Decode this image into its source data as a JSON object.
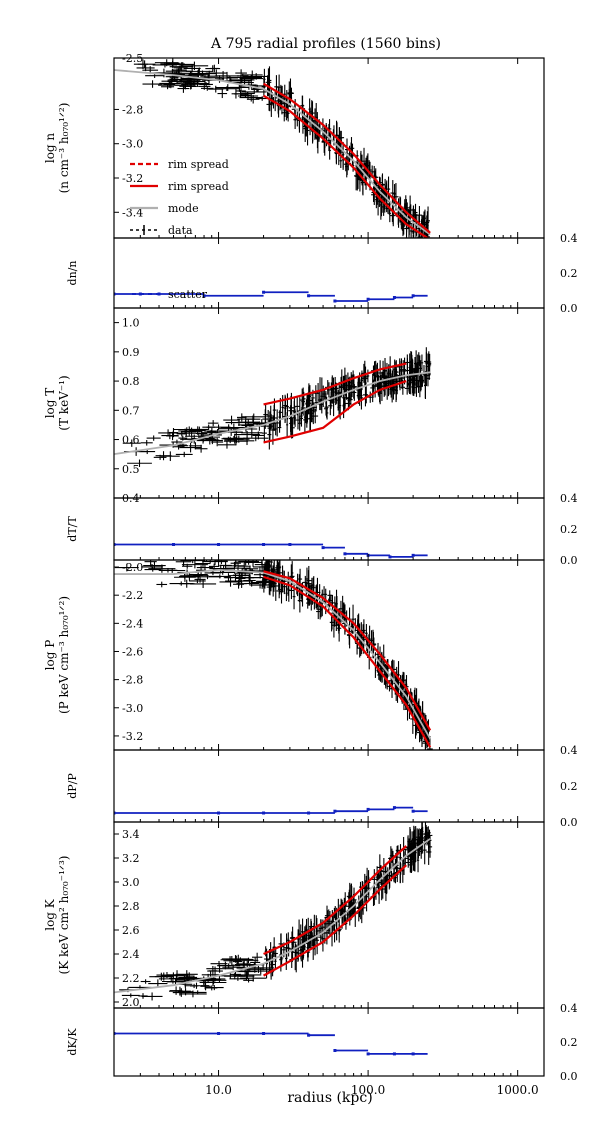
{
  "title": "A 795 radial profiles (1560 bins)",
  "xlabel": "radius (kpc)",
  "x_ticks": [
    "10.0",
    "100.0",
    "1000.0"
  ],
  "legend": [
    {
      "label": "rim spread",
      "style": "dashed",
      "color": "#e00000"
    },
    {
      "label": "rim spread",
      "style": "solid",
      "color": "#e00000"
    },
    {
      "label": "mode",
      "style": "solid",
      "color": "#b0b0b0"
    },
    {
      "label": "data",
      "style": "errorbar",
      "color": "#000000"
    }
  ],
  "colors": {
    "model": "#e00000",
    "mode": "#b0b0b0",
    "data": "#000000",
    "residual": "#1020c0"
  },
  "chart_data": [
    {
      "type": "line",
      "panel": "density",
      "ylabel": [
        "log n",
        "(n cm⁻³ h₀₇₀¹ᐟ²)"
      ],
      "y_ticks": [
        "-2.5",
        "-2.8",
        "-3.0",
        "-3.2",
        "-3.4"
      ],
      "xlim": [
        2,
        1500
      ],
      "ylim": [
        -3.55,
        -2.5
      ],
      "series": [
        {
          "role": "mode",
          "x": [
            2,
            5,
            10,
            20,
            30,
            50,
            80,
            120,
            180,
            260
          ],
          "y": [
            -2.57,
            -2.6,
            -2.63,
            -2.68,
            -2.77,
            -2.93,
            -3.1,
            -3.28,
            -3.43,
            -3.53
          ]
        },
        {
          "role": "upper",
          "x": [
            20,
            30,
            50,
            80,
            120,
            180,
            260
          ],
          "y": [
            -2.65,
            -2.74,
            -2.89,
            -3.06,
            -3.24,
            -3.4,
            -3.52
          ]
        },
        {
          "role": "lower",
          "x": [
            20,
            30,
            50,
            80,
            120,
            180,
            260
          ],
          "y": [
            -2.72,
            -2.81,
            -2.97,
            -3.14,
            -3.32,
            -3.47,
            -3.56
          ]
        }
      ]
    },
    {
      "type": "line",
      "panel": "density-residual",
      "ylabel": "dn/n",
      "y_ticks": [
        "0.4",
        "0.2",
        "0.0"
      ],
      "ylim": [
        0.0,
        0.4
      ],
      "legend_label": "scatter",
      "series": [
        {
          "role": "scatter",
          "x": [
            2,
            3,
            4,
            8,
            20,
            40,
            60,
            100,
            150,
            200,
            250
          ],
          "y": [
            0.08,
            0.08,
            0.08,
            0.07,
            0.09,
            0.07,
            0.04,
            0.05,
            0.06,
            0.07,
            0.06
          ]
        }
      ]
    },
    {
      "type": "line",
      "panel": "temperature",
      "ylabel": [
        "log T",
        "(T keV⁻¹)"
      ],
      "y_ticks": [
        "1.0",
        "0.9",
        "0.8",
        "0.7",
        "0.6",
        "0.5",
        "0.4"
      ],
      "ylim": [
        0.4,
        1.05
      ],
      "series": [
        {
          "role": "mode",
          "x": [
            2,
            5,
            10,
            20,
            30,
            50,
            80,
            120,
            180,
            260
          ],
          "y": [
            0.55,
            0.58,
            0.62,
            0.65,
            0.68,
            0.73,
            0.77,
            0.8,
            0.82,
            0.83
          ]
        },
        {
          "role": "upper",
          "x": [
            20,
            30,
            50,
            80,
            120,
            180
          ],
          "y": [
            0.72,
            0.74,
            0.77,
            0.81,
            0.84,
            0.86
          ]
        },
        {
          "role": "lower",
          "x": [
            20,
            30,
            50,
            80,
            120,
            180
          ],
          "y": [
            0.59,
            0.61,
            0.64,
            0.72,
            0.77,
            0.8
          ]
        }
      ]
    },
    {
      "type": "line",
      "panel": "temperature-residual",
      "ylabel": "dT/T",
      "y_ticks": [
        "0.4",
        "0.2",
        "0.0"
      ],
      "ylim": [
        0.0,
        0.4
      ],
      "series": [
        {
          "role": "scatter",
          "x": [
            2,
            5,
            10,
            20,
            30,
            50,
            70,
            100,
            140,
            200,
            250
          ],
          "y": [
            0.1,
            0.1,
            0.1,
            0.1,
            0.1,
            0.08,
            0.04,
            0.03,
            0.02,
            0.03,
            0.02
          ]
        }
      ]
    },
    {
      "type": "line",
      "panel": "pressure",
      "ylabel": [
        "log P",
        "(P keV cm⁻³ h₀₇₀¹ᐟ²)"
      ],
      "y_ticks": [
        "-2.0",
        "-2.2",
        "-2.4",
        "-2.6",
        "-2.8",
        "-3.0",
        "-3.2"
      ],
      "ylim": [
        -3.3,
        -1.95
      ],
      "series": [
        {
          "role": "mode",
          "x": [
            2,
            5,
            10,
            20,
            30,
            50,
            80,
            120,
            180,
            260
          ],
          "y": [
            -2.05,
            -2.05,
            -2.02,
            -2.04,
            -2.1,
            -2.25,
            -2.45,
            -2.68,
            -2.92,
            -3.22
          ]
        },
        {
          "role": "upper",
          "x": [
            20,
            30,
            50,
            80,
            120,
            180,
            260
          ],
          "y": [
            -2.03,
            -2.08,
            -2.22,
            -2.4,
            -2.62,
            -2.86,
            -3.16
          ]
        },
        {
          "role": "lower",
          "x": [
            20,
            30,
            50,
            80,
            120,
            180,
            260
          ],
          "y": [
            -2.07,
            -2.13,
            -2.28,
            -2.5,
            -2.74,
            -2.98,
            -3.28
          ]
        }
      ]
    },
    {
      "type": "line",
      "panel": "pressure-residual",
      "ylabel": "dP/P",
      "y_ticks": [
        "0.4",
        "0.2",
        "0.0"
      ],
      "ylim": [
        0.0,
        0.4
      ],
      "series": [
        {
          "role": "scatter",
          "x": [
            2,
            10,
            20,
            40,
            60,
            100,
            150,
            200,
            250
          ],
          "y": [
            0.05,
            0.05,
            0.05,
            0.05,
            0.06,
            0.07,
            0.08,
            0.06,
            0.05
          ]
        }
      ]
    },
    {
      "type": "line",
      "panel": "entropy",
      "ylabel": [
        "log K",
        "(K keV cm² h₀₇₀⁻¹ᐟ³)"
      ],
      "y_ticks": [
        "3.4",
        "3.2",
        "3.0",
        "2.8",
        "2.6",
        "2.4",
        "2.2",
        "2.0"
      ],
      "ylim": [
        1.95,
        3.5
      ],
      "series": [
        {
          "role": "mode",
          "x": [
            2,
            5,
            10,
            20,
            30,
            50,
            80,
            120,
            180,
            260
          ],
          "y": [
            2.08,
            2.14,
            2.22,
            2.32,
            2.42,
            2.58,
            2.8,
            3.02,
            3.22,
            3.36
          ]
        },
        {
          "role": "upper",
          "x": [
            20,
            30,
            50,
            80,
            120,
            180
          ],
          "y": [
            2.4,
            2.5,
            2.66,
            2.88,
            3.1,
            3.3
          ]
        },
        {
          "role": "lower",
          "x": [
            20,
            30,
            50,
            80,
            120,
            180
          ],
          "y": [
            2.22,
            2.34,
            2.5,
            2.72,
            2.94,
            3.14
          ]
        }
      ]
    },
    {
      "type": "line",
      "panel": "entropy-residual",
      "ylabel": "dK/K",
      "y_ticks": [
        "0.4",
        "0.2",
        "0.0"
      ],
      "ylim": [
        0.0,
        0.4
      ],
      "series": [
        {
          "role": "scatter",
          "x": [
            2,
            10,
            20,
            40,
            60,
            100,
            150,
            200,
            250
          ],
          "y": [
            0.25,
            0.25,
            0.25,
            0.24,
            0.15,
            0.13,
            0.13,
            0.13,
            0.13
          ]
        }
      ]
    }
  ]
}
